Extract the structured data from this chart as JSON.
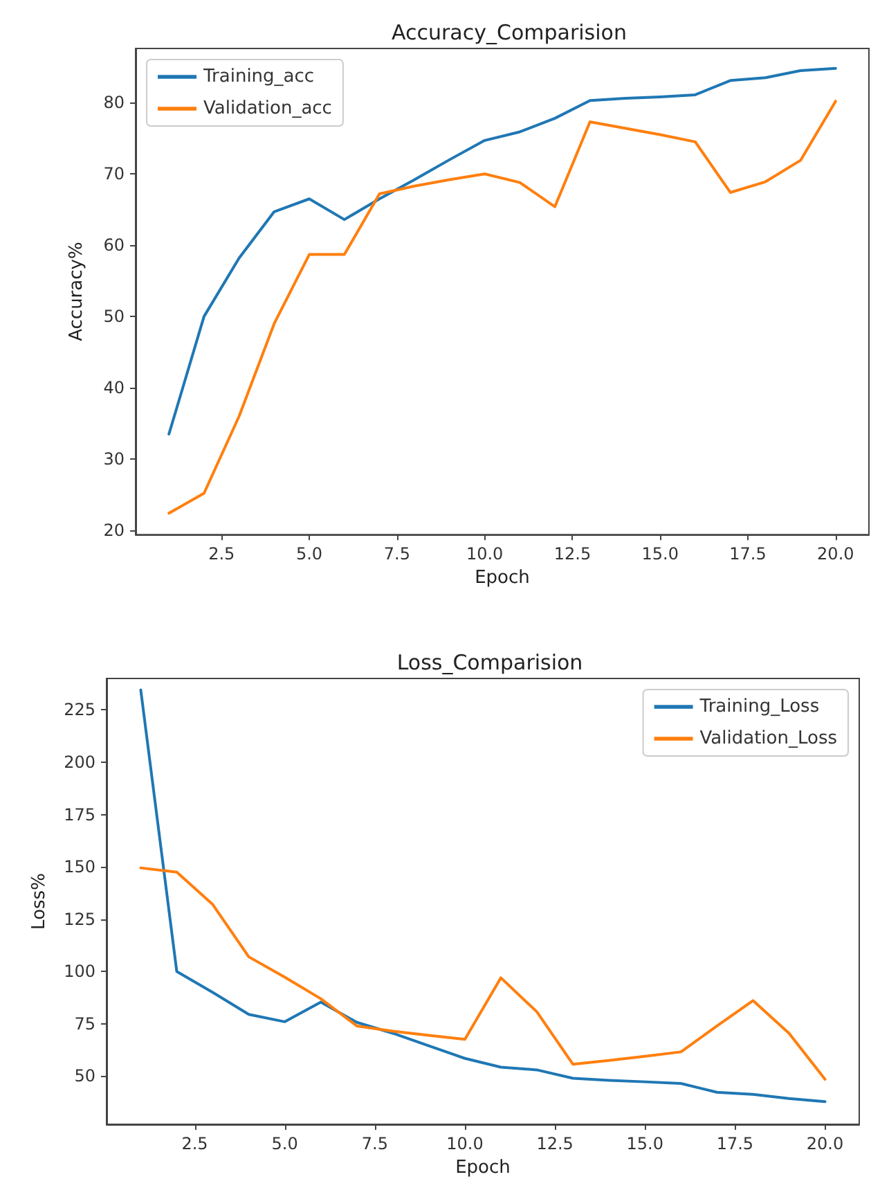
{
  "chart_data": [
    {
      "type": "line",
      "title": "Accuracy_Comparision",
      "xlabel": "Epoch",
      "ylabel": "Accuracy%",
      "x": [
        1,
        2,
        3,
        4,
        5,
        6,
        7,
        8,
        9,
        10,
        11,
        12,
        13,
        14,
        15,
        16,
        17,
        18,
        19,
        20
      ],
      "series": [
        {
          "name": "Training_acc",
          "color": "#1f77b4",
          "values": [
            33.5,
            50,
            58.2,
            64.7,
            66.5,
            63.6,
            66.5,
            69.2,
            72,
            74.7,
            75.9,
            77.8,
            80.3,
            80.6,
            80.8,
            81.1,
            83.1,
            83.5,
            84.5,
            84.8
          ]
        },
        {
          "name": "Validation_acc",
          "color": "#ff7f0e",
          "values": [
            22.4,
            25.2,
            36,
            49,
            58.7,
            58.7,
            67.2,
            68.3,
            69.2,
            70,
            68.8,
            65.4,
            77.3,
            76.4,
            75.5,
            74.5,
            67.4,
            68.9,
            71.9,
            80.2
          ]
        }
      ],
      "xlim": [
        0.05,
        20.95
      ],
      "xticks": [
        2.5,
        {
          "value": 5,
          "label": "5.0"
        },
        7.5,
        {
          "value": 10,
          "label": "10.0"
        },
        12.5,
        {
          "value": 15,
          "label": "15.0"
        },
        17.5,
        {
          "value": 20,
          "label": "20.0"
        }
      ],
      "ylim": [
        19.4,
        87.6
      ],
      "yticks": [
        20,
        30,
        40,
        50,
        60,
        70,
        80
      ],
      "grid": false,
      "legend": "top left",
      "marker": "none",
      "line_style": "solid"
    },
    {
      "type": "line",
      "title": "Loss_Comparision",
      "xlabel": "Epoch",
      "ylabel": "Loss%",
      "x": [
        1,
        2,
        3,
        4,
        5,
        6,
        7,
        8,
        9,
        10,
        11,
        12,
        13,
        14,
        15,
        16,
        17,
        18,
        19,
        20
      ],
      "series": [
        {
          "name": "Training_Loss",
          "color": "#1f77b4",
          "values": [
            234.5,
            100,
            90,
            79.5,
            76,
            85.4,
            75.7,
            70.5,
            64.5,
            58.5,
            54.3,
            53,
            49,
            48,
            47.3,
            46.5,
            42.3,
            41.3,
            39.3,
            37.8
          ]
        },
        {
          "name": "Validation_Loss",
          "color": "#ff7f0e",
          "values": [
            149.5,
            147.5,
            132,
            107,
            97.3,
            87,
            74,
            71.5,
            69.5,
            67.6,
            97,
            80.7,
            55.7,
            57.5,
            59.5,
            61.6,
            74,
            86.1,
            70.5,
            48.5
          ]
        }
      ],
      "xlim": [
        0.05,
        20.95
      ],
      "xticks": [
        2.5,
        {
          "value": 5,
          "label": "5.0"
        },
        7.5,
        {
          "value": 10,
          "label": "10.0"
        },
        12.5,
        {
          "value": 15,
          "label": "15.0"
        },
        17.5,
        {
          "value": 20,
          "label": "20.0"
        }
      ],
      "ylim": [
        27,
        240
      ],
      "yticks": [
        50,
        75,
        100,
        125,
        150,
        175,
        200,
        225
      ],
      "grid": false,
      "legend": "top right",
      "marker": "none",
      "line_style": "solid"
    }
  ]
}
